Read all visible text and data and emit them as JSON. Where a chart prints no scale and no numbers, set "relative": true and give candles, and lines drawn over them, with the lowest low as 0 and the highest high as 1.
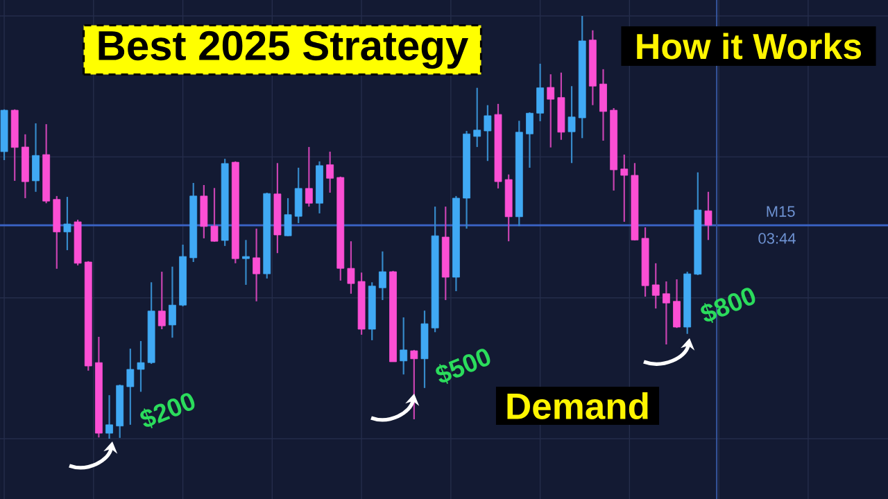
{
  "chart_data": {
    "type": "candlestick",
    "title": "Best 2025 Strategy",
    "relative": true,
    "grid": true,
    "categories": [
      null,
      null,
      null,
      null,
      null,
      null,
      null,
      null,
      null,
      null,
      null,
      null,
      null,
      null,
      null,
      null,
      null,
      null,
      null,
      null,
      null,
      null,
      null,
      null,
      null,
      null,
      null,
      null,
      null,
      null,
      null,
      null,
      null,
      null,
      null,
      null,
      null,
      null,
      null,
      null,
      null,
      null,
      null,
      null,
      null,
      null,
      null,
      null,
      null,
      null,
      null,
      null,
      null,
      null,
      null,
      null,
      null,
      null,
      null,
      null,
      null,
      null,
      null,
      null,
      null,
      null,
      null,
      null
    ],
    "ohlc": [
      [
        0.679,
        0.779,
        0.659,
        0.777
      ],
      [
        0.777,
        0.779,
        0.61,
        0.689
      ],
      [
        0.69,
        0.72,
        0.569,
        0.608
      ],
      [
        0.61,
        0.746,
        0.584,
        0.67
      ],
      [
        0.672,
        0.744,
        0.557,
        0.562
      ],
      [
        0.566,
        0.574,
        0.402,
        0.489
      ],
      [
        0.489,
        0.572,
        0.446,
        0.508
      ],
      [
        0.513,
        0.518,
        0.41,
        0.415
      ],
      [
        0.418,
        0.42,
        0.161,
        0.172
      ],
      [
        0.18,
        0.241,
        0.003,
        0.013
      ],
      [
        0.013,
        0.103,
        0.0,
        0.033
      ],
      [
        0.03,
        0.128,
        0.002,
        0.126
      ],
      [
        0.123,
        0.213,
        0.033,
        0.164
      ],
      [
        0.164,
        0.231,
        0.111,
        0.18
      ],
      [
        0.18,
        0.37,
        0.177,
        0.302
      ],
      [
        0.302,
        0.395,
        0.259,
        0.267
      ],
      [
        0.269,
        0.407,
        0.239,
        0.316
      ],
      [
        0.316,
        0.459,
        0.313,
        0.431
      ],
      [
        0.428,
        0.605,
        0.418,
        0.574
      ],
      [
        0.574,
        0.6,
        0.474,
        0.502
      ],
      [
        0.503,
        0.593,
        0.466,
        0.467
      ],
      [
        0.469,
        0.662,
        0.456,
        0.651
      ],
      [
        0.654,
        0.656,
        0.415,
        0.426
      ],
      [
        0.426,
        0.47,
        0.364,
        0.431
      ],
      [
        0.428,
        0.497,
        0.325,
        0.39
      ],
      [
        0.39,
        0.582,
        0.379,
        0.58
      ],
      [
        0.579,
        0.652,
        0.439,
        0.482
      ],
      [
        0.48,
        0.569,
        0.479,
        0.53
      ],
      [
        0.526,
        0.641,
        0.51,
        0.592
      ],
      [
        0.592,
        0.69,
        0.549,
        0.557
      ],
      [
        0.557,
        0.656,
        0.533,
        0.646
      ],
      [
        0.648,
        0.679,
        0.582,
        0.616
      ],
      [
        0.618,
        0.62,
        0.374,
        0.403
      ],
      [
        0.403,
        0.467,
        0.343,
        0.367
      ],
      [
        0.372,
        0.393,
        0.246,
        0.259
      ],
      [
        0.259,
        0.37,
        0.233,
        0.361
      ],
      [
        0.357,
        0.443,
        0.328,
        0.395
      ],
      [
        0.395,
        0.397,
        0.182,
        0.182
      ],
      [
        0.184,
        0.287,
        0.152,
        0.21
      ],
      [
        0.208,
        0.21,
        0.046,
        0.189
      ],
      [
        0.189,
        0.303,
        0.12,
        0.272
      ],
      [
        0.262,
        0.549,
        0.252,
        0.48
      ],
      [
        0.477,
        0.549,
        0.328,
        0.382
      ],
      [
        0.382,
        0.574,
        0.349,
        0.569
      ],
      [
        0.569,
        0.728,
        0.497,
        0.721
      ],
      [
        0.715,
        0.83,
        0.69,
        0.73
      ],
      [
        0.728,
        0.789,
        0.657,
        0.764
      ],
      [
        0.767,
        0.792,
        0.592,
        0.608
      ],
      [
        0.613,
        0.625,
        0.467,
        0.525
      ],
      [
        0.525,
        0.752,
        0.503,
        0.725
      ],
      [
        0.721,
        0.772,
        0.641,
        0.77
      ],
      [
        0.77,
        0.887,
        0.751,
        0.83
      ],
      [
        0.831,
        0.862,
        0.689,
        0.803
      ],
      [
        0.807,
        0.866,
        0.707,
        0.725
      ],
      [
        0.726,
        0.834,
        0.652,
        0.761
      ],
      [
        0.759,
        1.0,
        0.711,
        0.941
      ],
      [
        0.943,
        0.966,
        0.789,
        0.834
      ],
      [
        0.839,
        0.874,
        0.705,
        0.774
      ],
      [
        0.777,
        0.782,
        0.587,
        0.636
      ],
      [
        0.638,
        0.672,
        0.513,
        0.623
      ],
      [
        0.623,
        0.652,
        0.469,
        0.47
      ],
      [
        0.474,
        0.5,
        0.336,
        0.362
      ],
      [
        0.364,
        0.415,
        0.308,
        0.339
      ],
      [
        0.343,
        0.372,
        0.223,
        0.321
      ],
      [
        0.325,
        0.377,
        0.262,
        0.264
      ],
      [
        0.264,
        0.395,
        0.248,
        0.39
      ],
      [
        0.389,
        0.63,
        0.387,
        0.541
      ],
      [
        0.539,
        0.584,
        0.47,
        0.505
      ]
    ],
    "colors": [
      "#40a9f4",
      "#fb4fd4",
      "#fb4fd4",
      "#40a9f4",
      "#fb4fd4",
      "#fb4fd4",
      "#40a9f4",
      "#fb4fd4",
      "#fb4fd4",
      "#fb4fd4",
      "#40a9f4",
      "#40a9f4",
      "#40a9f4",
      "#40a9f4",
      "#40a9f4",
      "#fb4fd4",
      "#40a9f4",
      "#40a9f4",
      "#40a9f4",
      "#fb4fd4",
      "#fb4fd4",
      "#40a9f4",
      "#fb4fd4",
      "#40a9f4",
      "#fb4fd4",
      "#40a9f4",
      "#fb4fd4",
      "#40a9f4",
      "#40a9f4",
      "#fb4fd4",
      "#40a9f4",
      "#fb4fd4",
      "#fb4fd4",
      "#fb4fd4",
      "#fb4fd4",
      "#40a9f4",
      "#40a9f4",
      "#fb4fd4",
      "#40a9f4",
      "#fb4fd4",
      "#40a9f4",
      "#40a9f4",
      "#fb4fd4",
      "#40a9f4",
      "#40a9f4",
      "#40a9f4",
      "#40a9f4",
      "#fb4fd4",
      "#fb4fd4",
      "#40a9f4",
      "#40a9f4",
      "#40a9f4",
      "#fb4fd4",
      "#fb4fd4",
      "#40a9f4",
      "#40a9f4",
      "#fb4fd4",
      "#fb4fd4",
      "#fb4fd4",
      "#fb4fd4",
      "#fb4fd4",
      "#fb4fd4",
      "#fb4fd4",
      "#fb4fd4",
      "#fb4fd4",
      "#40a9f4",
      "#40a9f4",
      "#fb4fd4"
    ],
    "ref_lines": [
      {
        "axis": "y",
        "value": 0.505,
        "label": "M15",
        "color": "#3b63c6"
      }
    ],
    "annotations": [
      "How it Works",
      "Demand",
      "03:44",
      "$200",
      "$500",
      "$800"
    ]
  }
}
